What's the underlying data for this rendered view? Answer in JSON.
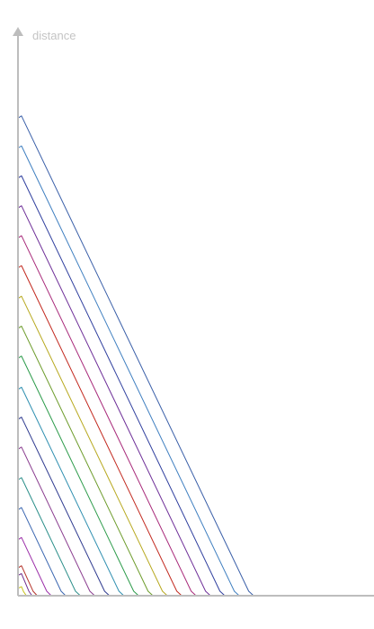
{
  "chart_data": {
    "type": "line",
    "title": "",
    "xlabel": "",
    "ylabel": "distance",
    "grid": false,
    "legend": "none",
    "xlim": [
      0,
      100
    ],
    "ylim": [
      0,
      100
    ],
    "plateau_x": 100,
    "series": [
      {
        "color": "#c9c21d",
        "points": [
          [
            0,
            1.3
          ],
          [
            1.0,
            1.6
          ],
          [
            1.6,
            0.7
          ],
          [
            2.4,
            0.0
          ]
        ]
      },
      {
        "color": "#6f2d8e",
        "points": [
          [
            0,
            3.6
          ],
          [
            1.0,
            3.9
          ],
          [
            3.1,
            0.8
          ],
          [
            4.0,
            0.0
          ]
        ]
      },
      {
        "color": "#b5332a",
        "points": [
          [
            0,
            4.9
          ],
          [
            1.0,
            5.3
          ],
          [
            4.3,
            0.8
          ],
          [
            5.5,
            0.0
          ]
        ]
      },
      {
        "color": "#9b2ea8",
        "points": [
          [
            0,
            9.9
          ],
          [
            1.0,
            10.3
          ],
          [
            8.2,
            0.8
          ],
          [
            9.5,
            0.0
          ]
        ]
      },
      {
        "color": "#3a66b0",
        "points": [
          [
            0,
            15.2
          ],
          [
            1.0,
            15.6
          ],
          [
            12.3,
            0.8
          ],
          [
            13.6,
            0.0
          ]
        ]
      },
      {
        "color": "#2c8f8a",
        "points": [
          [
            0,
            20.5
          ],
          [
            1.0,
            20.9
          ],
          [
            16.4,
            0.8
          ],
          [
            17.8,
            0.0
          ]
        ]
      },
      {
        "color": "#8a3d8f",
        "points": [
          [
            0,
            25.9
          ],
          [
            1.0,
            26.3
          ],
          [
            20.5,
            0.8
          ],
          [
            21.9,
            0.0
          ]
        ]
      },
      {
        "color": "#2e3a8f",
        "points": [
          [
            0,
            31.2
          ],
          [
            1.0,
            31.6
          ],
          [
            24.7,
            0.8
          ],
          [
            26.1,
            0.0
          ]
        ]
      },
      {
        "color": "#2f8fb0",
        "points": [
          [
            0,
            36.5
          ],
          [
            1.0,
            36.9
          ],
          [
            28.8,
            0.8
          ],
          [
            30.2,
            0.0
          ]
        ]
      },
      {
        "color": "#2c9b4a",
        "points": [
          [
            0,
            42.0
          ],
          [
            1.0,
            42.4
          ],
          [
            33.0,
            0.8
          ],
          [
            34.4,
            0.0
          ]
        ]
      },
      {
        "color": "#6c9b2a",
        "points": [
          [
            0,
            47.3
          ],
          [
            1.0,
            47.7
          ],
          [
            37.1,
            0.8
          ],
          [
            38.5,
            0.0
          ]
        ]
      },
      {
        "color": "#b7a81e",
        "points": [
          [
            0,
            52.6
          ],
          [
            1.0,
            53.0
          ],
          [
            41.2,
            0.8
          ],
          [
            42.6,
            0.0
          ]
        ]
      },
      {
        "color": "#c2281e",
        "points": [
          [
            0,
            58.0
          ],
          [
            1.0,
            58.4
          ],
          [
            45.3,
            0.8
          ],
          [
            46.7,
            0.0
          ]
        ]
      },
      {
        "color": "#a82a7a",
        "points": [
          [
            0,
            63.3
          ],
          [
            1.0,
            63.7
          ],
          [
            49.4,
            0.8
          ],
          [
            50.8,
            0.0
          ]
        ]
      },
      {
        "color": "#6e2f98",
        "points": [
          [
            0,
            68.6
          ],
          [
            1.0,
            69.0
          ],
          [
            53.5,
            0.8
          ],
          [
            54.9,
            0.0
          ]
        ]
      },
      {
        "color": "#2f3f9e",
        "points": [
          [
            0,
            73.9
          ],
          [
            1.0,
            74.3
          ],
          [
            57.6,
            0.8
          ],
          [
            59.0,
            0.0
          ]
        ]
      },
      {
        "color": "#3f7fc0",
        "points": [
          [
            0,
            79.2
          ],
          [
            1.0,
            79.6
          ],
          [
            61.7,
            0.8
          ],
          [
            63.1,
            0.0
          ]
        ]
      },
      {
        "color": "#3a5fa8",
        "points": [
          [
            0,
            84.5
          ],
          [
            1.0,
            84.9
          ],
          [
            65.8,
            0.8
          ],
          [
            67.2,
            0.0
          ]
        ]
      }
    ]
  }
}
